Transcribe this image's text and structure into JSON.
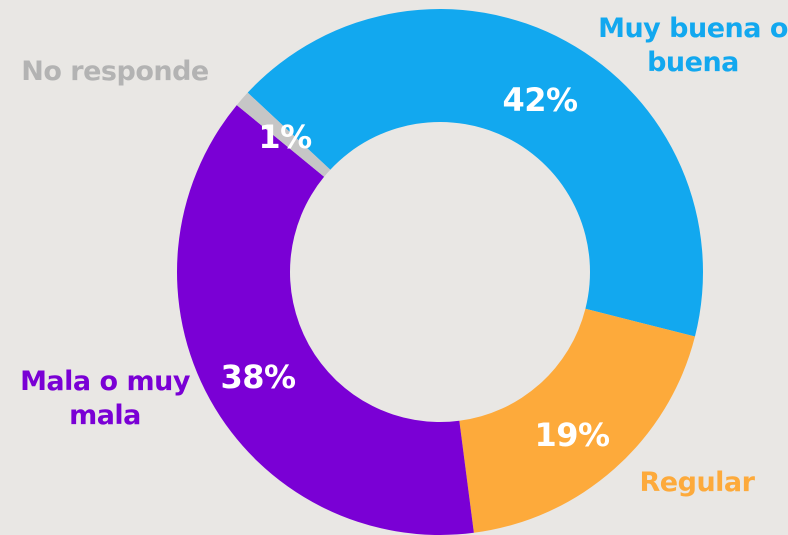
{
  "chart_data": {
    "type": "pie",
    "donut": true,
    "categories": [
      "Muy buena o buena",
      "Regular",
      "Mala o muy mala",
      "No responde"
    ],
    "values": [
      42,
      19,
      38,
      1
    ],
    "value_labels": [
      "42%",
      "19%",
      "38%",
      "1%"
    ],
    "colors": [
      "#12a8ef",
      "#fdaa3b",
      "#7a00d5",
      "#c6c6c6"
    ],
    "label_colors": [
      "#12a8ef",
      "#fdaa3b",
      "#7a00d5",
      "#b3b3b3"
    ]
  }
}
